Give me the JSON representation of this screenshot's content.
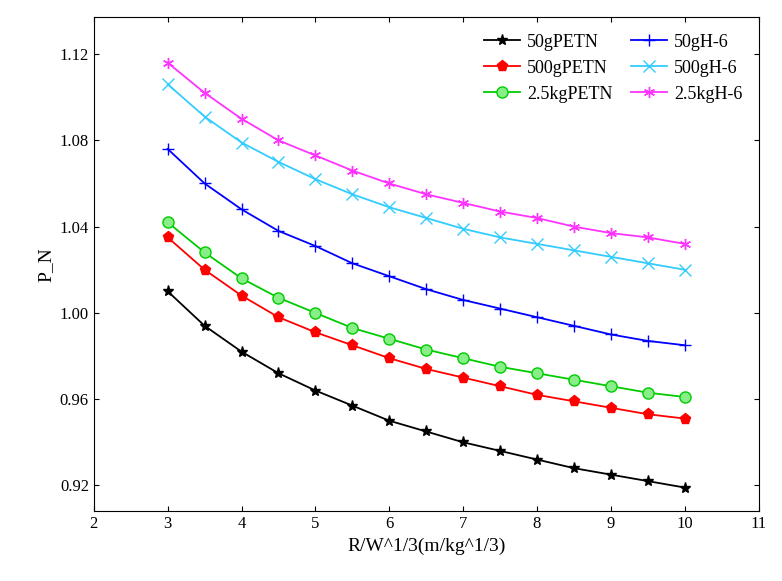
{
  "chart_data": {
    "type": "line",
    "x_label": "R/W^1/3(m/kg^1/3)",
    "y_label": "P_N",
    "x": [
      3,
      3.5,
      4,
      4.5,
      5,
      5.5,
      6,
      6.5,
      7,
      7.5,
      8,
      8.5,
      9,
      9.5,
      10
    ],
    "series": [
      {
        "name": "50gPETN",
        "color": "#000000",
        "marker": "star",
        "values": [
          1.01,
          0.994,
          0.982,
          0.972,
          0.964,
          0.957,
          0.95,
          0.945,
          0.94,
          0.936,
          0.932,
          0.928,
          0.925,
          0.922,
          0.919
        ]
      },
      {
        "name": "500gPETN",
        "color": "#ff0000",
        "marker": "pentagon",
        "values": [
          1.035,
          1.02,
          1.008,
          0.998,
          0.991,
          0.985,
          0.979,
          0.974,
          0.97,
          0.966,
          0.962,
          0.959,
          0.956,
          0.953,
          0.951
        ]
      },
      {
        "name": "2.5kgPETN",
        "color": "#00cc00",
        "marker": "circle",
        "values": [
          1.042,
          1.028,
          1.016,
          1.007,
          1.0,
          0.993,
          0.988,
          0.983,
          0.979,
          0.975,
          0.972,
          0.969,
          0.966,
          0.963,
          0.961
        ]
      },
      {
        "name": "50gH-6",
        "color": "#0000ff",
        "marker": "plus",
        "values": [
          1.076,
          1.06,
          1.048,
          1.038,
          1.031,
          1.023,
          1.017,
          1.011,
          1.006,
          1.002,
          0.998,
          0.994,
          0.99,
          0.987,
          0.985
        ]
      },
      {
        "name": "500gH-6",
        "color": "#33ccff",
        "marker": "x",
        "values": [
          1.106,
          1.091,
          1.079,
          1.07,
          1.062,
          1.055,
          1.049,
          1.044,
          1.039,
          1.035,
          1.032,
          1.029,
          1.026,
          1.023,
          1.02
        ]
      },
      {
        "name": "2.5kgH-6",
        "color": "#ff33ff",
        "marker": "asterisk",
        "values": [
          1.116,
          1.102,
          1.09,
          1.08,
          1.073,
          1.066,
          1.06,
          1.055,
          1.051,
          1.047,
          1.044,
          1.04,
          1.037,
          1.035,
          1.032
        ]
      }
    ],
    "xlim": [
      2,
      11
    ],
    "xticks": [
      2,
      3,
      4,
      5,
      6,
      7,
      8,
      9,
      10,
      11
    ],
    "ylim": [
      0.908,
      1.137
    ],
    "yticks": [
      0.92,
      0.96,
      {
        "value": 1.0,
        "label": "1.00"
      },
      1.04,
      1.08,
      1.12
    ],
    "legend": "upper right",
    "grid": false
  }
}
